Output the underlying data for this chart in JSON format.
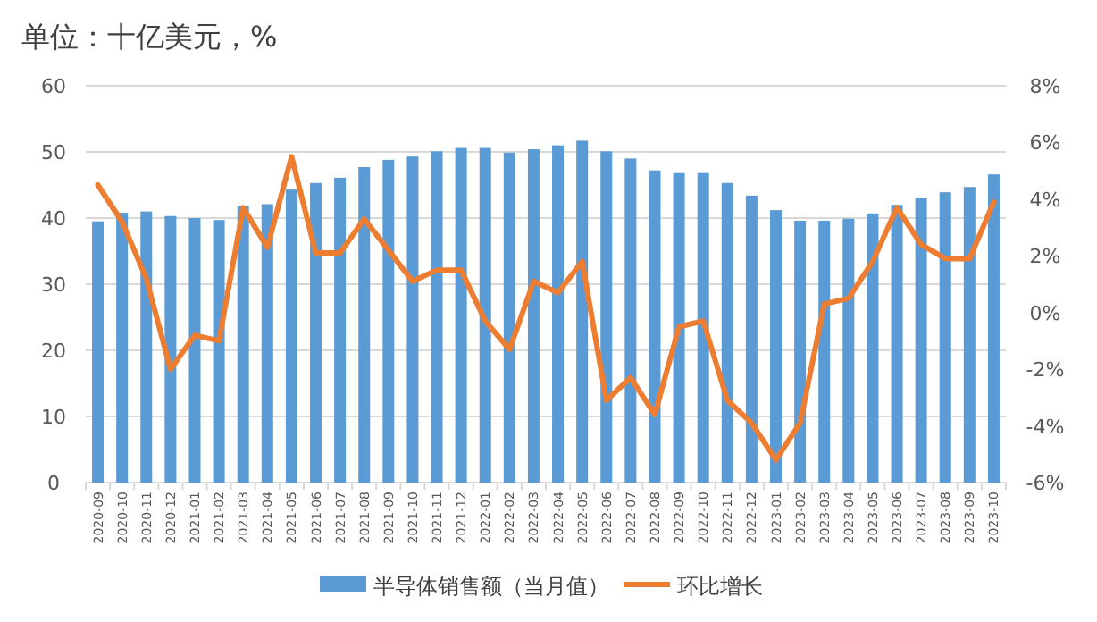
{
  "chart_data": {
    "type": "bar",
    "title": "单位：十亿美元，%",
    "categories": [
      "2020-09",
      "2020-10",
      "2020-11",
      "2020-12",
      "2021-01",
      "2021-02",
      "2021-03",
      "2021-04",
      "2021-05",
      "2021-06",
      "2021-07",
      "2021-08",
      "2021-09",
      "2021-10",
      "2021-11",
      "2021-12",
      "2022-01",
      "2022-02",
      "2022-03",
      "2022-04",
      "2022-05",
      "2022-06",
      "2022-07",
      "2022-08",
      "2022-09",
      "2022-10",
      "2022-11",
      "2022-12",
      "2023-01",
      "2023-02",
      "2023-03",
      "2023-04",
      "2023-05",
      "2023-06",
      "2023-07",
      "2023-08",
      "2023-09",
      "2023-10"
    ],
    "series": [
      {
        "name": "半导体销售额（当月值）",
        "color": "#5b9bd5",
        "values": [
          39.5,
          40.8,
          41.0,
          40.3,
          40.0,
          39.7,
          41.8,
          42.1,
          44.3,
          45.3,
          46.1,
          47.7,
          48.8,
          49.3,
          50.1,
          50.6,
          50.6,
          49.9,
          50.4,
          51.0,
          51.7,
          50.1,
          49.0,
          47.2,
          46.8,
          46.8,
          45.3,
          43.4,
          41.2,
          39.6,
          39.6,
          39.9,
          40.7,
          42.0,
          43.1,
          43.9,
          44.7,
          46.6
        ]
      },
      {
        "name": "环比增长",
        "type": "line",
        "axis": "y2",
        "color": "#ed7d31",
        "values": [
          4.5,
          3.2,
          1.2,
          -2.0,
          -0.8,
          -1.0,
          3.7,
          2.3,
          5.5,
          2.1,
          2.1,
          3.3,
          2.2,
          1.1,
          1.5,
          1.5,
          -0.3,
          -1.3,
          1.1,
          0.7,
          1.8,
          -3.1,
          -2.3,
          -3.6,
          -0.5,
          -0.3,
          -3.1,
          -3.9,
          -5.2,
          -3.9,
          0.3,
          0.5,
          1.8,
          3.7,
          2.4,
          1.9,
          1.9,
          3.9
        ]
      }
    ],
    "ylim": [
      0,
      60
    ],
    "yticks": [
      0,
      10,
      20,
      30,
      40,
      50,
      60
    ],
    "y2lim": [
      -6,
      8
    ],
    "y2ticks": [
      {
        "value": -6,
        "label": "-6%"
      },
      {
        "value": -4,
        "label": "-4%"
      },
      {
        "value": -2,
        "label": "-2%"
      },
      {
        "value": 0,
        "label": "0%"
      },
      {
        "value": 2,
        "label": "2%"
      },
      {
        "value": 4,
        "label": "4%"
      },
      {
        "value": 6,
        "label": "6%"
      },
      {
        "value": 8,
        "label": "8%"
      }
    ],
    "grid": "y",
    "legend": "bottom"
  }
}
